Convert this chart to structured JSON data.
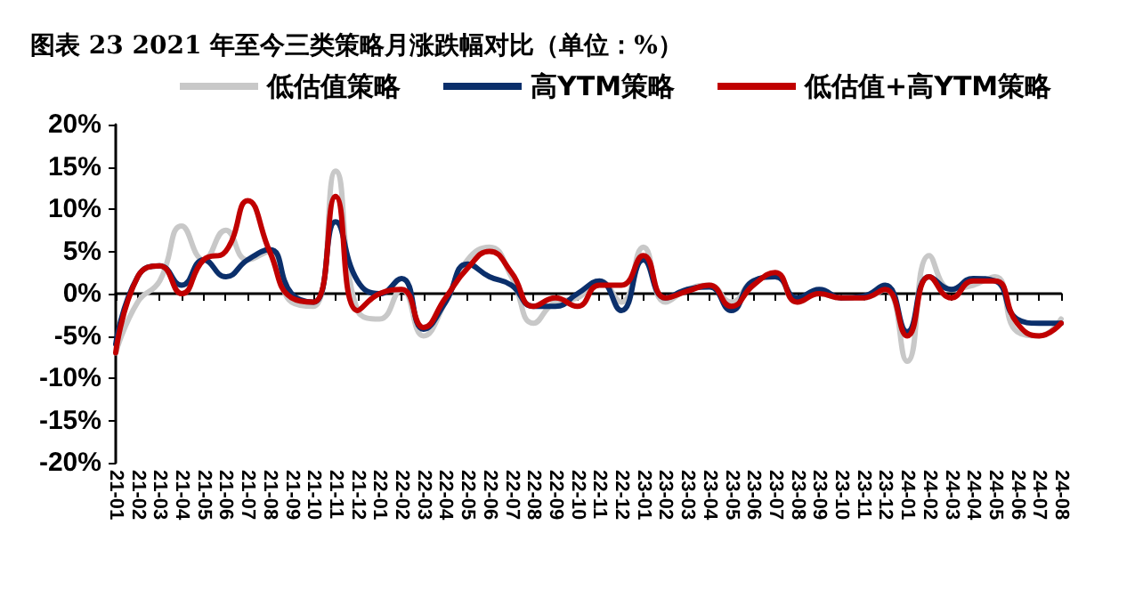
{
  "chart_data": {
    "type": "line",
    "title": "图表 23 2021 年至今三类策略月涨跌幅对比（单位：%）",
    "categories": [
      "21-01",
      "21-02",
      "21-03",
      "21-04",
      "21-05",
      "21-06",
      "21-07",
      "21-08",
      "21-09",
      "21-10",
      "21-11",
      "21-12",
      "22-01",
      "22-02",
      "22-03",
      "22-04",
      "22-05",
      "22-06",
      "22-07",
      "22-08",
      "22-09",
      "22-10",
      "22-11",
      "22-12",
      "23-01",
      "23-02",
      "23-03",
      "23-04",
      "23-05",
      "23-06",
      "23-07",
      "23-08",
      "23-09",
      "23-10",
      "23-11",
      "23-12",
      "24-01",
      "24-02",
      "24-03",
      "24-04",
      "24-05",
      "24-06",
      "24-07",
      "24-08"
    ],
    "series": [
      {
        "name": "低估值策略",
        "color": "#c8c8c8",
        "values": [
          -7,
          -1,
          1.5,
          8,
          4,
          7.5,
          4,
          5,
          -1,
          -1.5,
          14.5,
          -2,
          -3,
          0.5,
          -5,
          -1,
          4,
          5.5,
          2,
          -3.5,
          -1,
          -0.5,
          1.5,
          -1,
          5.5,
          -1,
          0.5,
          1,
          -1,
          1.5,
          2,
          -1,
          0,
          -0.5,
          -0.5,
          0.5,
          -8,
          4.5,
          0.5,
          1,
          2,
          -4.5,
          -5,
          -3
        ]
      },
      {
        "name": "高YTM策略",
        "color": "#0b2f6b",
        "values": [
          -6,
          2,
          3.3,
          1,
          4,
          2,
          4,
          5.2,
          0,
          -1,
          8.5,
          1.5,
          0,
          1.8,
          -4.2,
          -1,
          3.5,
          2,
          1,
          -1.5,
          -1.5,
          0,
          1.5,
          -2,
          4,
          -0.5,
          0.5,
          0.8,
          -2,
          1.5,
          2,
          -0.5,
          0.5,
          -0.5,
          -0.3,
          1,
          -4.5,
          2,
          0.5,
          1.8,
          1.5,
          -3,
          -3.5,
          -3.5
        ]
      },
      {
        "name": "低估值+高YTM策略",
        "color": "#c00000",
        "values": [
          -7,
          2,
          3.3,
          0,
          4,
          5,
          11,
          5,
          -0.5,
          -1,
          11.5,
          -2,
          0,
          0.5,
          -4,
          -0.5,
          3,
          5,
          2.5,
          -1.5,
          -0.5,
          -1.5,
          1,
          1,
          4.5,
          -0.5,
          0.3,
          1,
          -1.5,
          1,
          2.5,
          -1,
          0,
          -0.5,
          -0.5,
          0.5,
          -5,
          2,
          -0.5,
          1.5,
          1.5,
          -3.5,
          -5,
          -3.5
        ]
      }
    ],
    "ylim": [
      -20,
      20
    ],
    "yticks": [
      {
        "value": -20,
        "label": "-20%"
      },
      {
        "value": -15,
        "label": "-15%"
      },
      {
        "value": -10,
        "label": "-10%"
      },
      {
        "value": -5,
        "label": "-5%"
      },
      {
        "value": 0,
        "label": "0%"
      },
      {
        "value": 5,
        "label": "5%"
      },
      {
        "value": 10,
        "label": "10%"
      },
      {
        "value": 15,
        "label": "15%"
      },
      {
        "value": 20,
        "label": "20%"
      }
    ],
    "legend": "top",
    "marker": "none",
    "line_style": "solid"
  }
}
